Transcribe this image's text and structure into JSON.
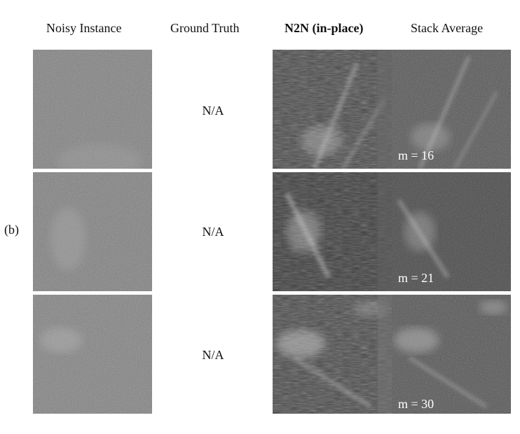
{
  "headers": {
    "noisy": "Noisy Instance",
    "ground_truth": "Ground Truth",
    "n2n": "N2N (in-place)",
    "stack": "Stack Average"
  },
  "panel_label": "(b)",
  "rows": [
    {
      "ground_truth_text": "N/A",
      "m_label": "m = 16"
    },
    {
      "ground_truth_text": "N/A",
      "m_label": "m = 21"
    },
    {
      "ground_truth_text": "N/A",
      "m_label": "m = 30"
    }
  ]
}
